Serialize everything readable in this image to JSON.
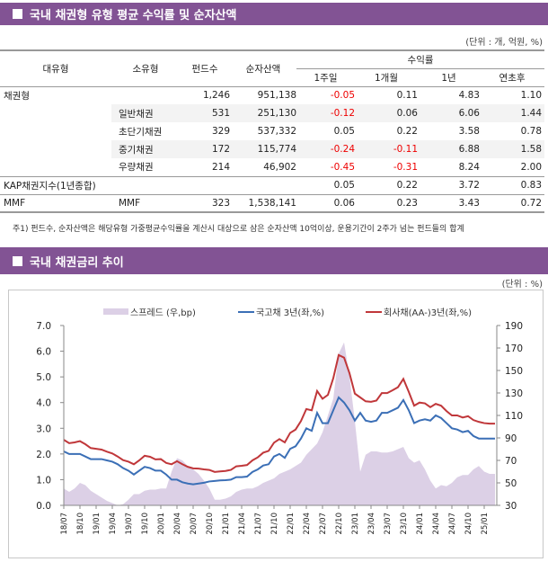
{
  "section1": {
    "title": "국내 채권형 유형 평균 수익률 및 순자산액",
    "unit": "(단위 : 개, 억원, %)"
  },
  "table": {
    "headers": {
      "major": "대유형",
      "minor": "소유형",
      "funds": "펀드수",
      "aum": "순자산액",
      "returns": "수익률",
      "w1": "1주일",
      "m1": "1개월",
      "y1": "1년",
      "ytd": "연초후"
    },
    "rows": [
      {
        "major": "채권형",
        "minor": "",
        "funds": "1,246",
        "aum": "951,138",
        "w1": "-0.05",
        "m1": "0.11",
        "y1": "4.83",
        "ytd": "1.10"
      },
      {
        "major": "",
        "minor": "일반채권",
        "funds": "531",
        "aum": "251,130",
        "w1": "-0.12",
        "m1": "0.06",
        "y1": "6.06",
        "ytd": "1.44"
      },
      {
        "major": "",
        "minor": "초단기채권",
        "funds": "329",
        "aum": "537,332",
        "w1": "0.05",
        "m1": "0.22",
        "y1": "3.58",
        "ytd": "0.78"
      },
      {
        "major": "",
        "minor": "중기채권",
        "funds": "172",
        "aum": "115,774",
        "w1": "-0.24",
        "m1": "-0.11",
        "y1": "6.88",
        "ytd": "1.58"
      },
      {
        "major": "",
        "minor": "우량채권",
        "funds": "214",
        "aum": "46,902",
        "w1": "-0.45",
        "m1": "-0.31",
        "y1": "8.24",
        "ytd": "2.00"
      },
      {
        "major": "KAP채권지수(1년종합)",
        "minor": "",
        "funds": "",
        "aum": "",
        "w1": "0.05",
        "m1": "0.22",
        "y1": "3.72",
        "ytd": "0.83"
      },
      {
        "major": "MMF",
        "minor": "MMF",
        "funds": "323",
        "aum": "1,538,141",
        "w1": "0.06",
        "m1": "0.23",
        "y1": "3.43",
        "ytd": "0.72"
      }
    ],
    "footnote": "주1) 펀드수, 순자산액은 해당유형 가중평균수익률을 계산시 대상으로 삼은 순자산액 10억이상, 운용기간이 2주가 넘는 펀드들의 합계"
  },
  "section2": {
    "title": "국내 채권금리 추이",
    "unit": "(단위 : %)"
  },
  "colors": {
    "header_bar": "#825394",
    "negative": "#e00000",
    "spread": "#dcd0e6",
    "gov": "#3b6fb6",
    "corp": "#c0373a"
  },
  "chart_data": {
    "type": "line+area",
    "legend_position": "top",
    "x_start": "18/07",
    "x_step": "month",
    "x_ticks": [
      "18/07",
      "18/10",
      "19/01",
      "19/04",
      "19/07",
      "19/10",
      "20/01",
      "20/04",
      "20/07",
      "20/10",
      "21/01",
      "21/04",
      "21/07",
      "21/10",
      "22/01",
      "22/04",
      "22/07",
      "22/10",
      "23/01",
      "23/04",
      "23/07",
      "23/10",
      "24/01",
      "24/04",
      "24/07",
      "24/10",
      "25/01"
    ],
    "y_left": {
      "min": 0,
      "max": 7,
      "ticks": [
        "0.0",
        "1.0",
        "2.0",
        "3.0",
        "4.0",
        "5.0",
        "6.0",
        "7.0"
      ]
    },
    "y_right": {
      "min": 30,
      "max": 190,
      "ticks": [
        "30",
        "50",
        "70",
        "90",
        "110",
        "130",
        "150",
        "170",
        "190"
      ]
    },
    "series": [
      {
        "name": "스프레드 (우,bp)",
        "axis": "right",
        "kind": "area",
        "values": [
          45,
          42,
          45,
          50,
          48,
          43,
          40,
          37,
          34,
          32,
          30,
          31,
          35,
          40,
          40,
          43,
          44,
          44,
          45,
          45,
          60,
          72,
          70,
          65,
          62,
          58,
          52,
          45,
          35,
          35,
          36,
          38,
          42,
          44,
          45,
          45,
          47,
          50,
          52,
          54,
          58,
          60,
          62,
          65,
          68,
          75,
          80,
          85,
          95,
          110,
          125,
          165,
          175,
          145,
          105,
          60,
          75,
          78,
          78,
          77,
          77,
          78,
          80,
          82,
          72,
          68,
          70,
          62,
          52,
          45,
          48,
          47,
          50,
          55,
          57,
          57,
          62,
          65,
          60,
          58,
          58
        ]
      },
      {
        "name": "국고채 3년(좌,%)",
        "axis": "left",
        "kind": "line",
        "values": [
          2.1,
          2.0,
          2.0,
          2.0,
          1.9,
          1.8,
          1.8,
          1.8,
          1.75,
          1.7,
          1.6,
          1.45,
          1.35,
          1.2,
          1.35,
          1.5,
          1.45,
          1.35,
          1.35,
          1.2,
          1.0,
          1.0,
          0.9,
          0.85,
          0.82,
          0.85,
          0.88,
          0.93,
          0.95,
          0.97,
          0.98,
          1.0,
          1.1,
          1.1,
          1.12,
          1.3,
          1.4,
          1.55,
          1.6,
          1.9,
          2.0,
          1.85,
          2.2,
          2.3,
          2.6,
          3.0,
          2.9,
          3.6,
          3.2,
          3.2,
          3.7,
          4.2,
          4.0,
          3.7,
          3.3,
          3.6,
          3.3,
          3.25,
          3.3,
          3.6,
          3.6,
          3.7,
          3.8,
          4.1,
          3.7,
          3.2,
          3.3,
          3.35,
          3.3,
          3.5,
          3.4,
          3.2,
          3.0,
          2.95,
          2.85,
          2.9,
          2.7,
          2.6,
          2.6,
          2.6,
          2.6
        ]
      },
      {
        "name": "회사채(AA-)3년(좌,%)",
        "axis": "left",
        "kind": "line",
        "values": [
          2.55,
          2.42,
          2.45,
          2.5,
          2.38,
          2.23,
          2.2,
          2.17,
          2.09,
          2.02,
          1.9,
          1.76,
          1.7,
          1.6,
          1.75,
          1.93,
          1.89,
          1.79,
          1.8,
          1.65,
          1.6,
          1.72,
          1.6,
          1.5,
          1.44,
          1.43,
          1.4,
          1.38,
          1.3,
          1.32,
          1.34,
          1.38,
          1.52,
          1.54,
          1.57,
          1.75,
          1.87,
          2.05,
          2.12,
          2.44,
          2.58,
          2.45,
          2.82,
          2.95,
          3.28,
          3.75,
          3.7,
          4.45,
          4.15,
          4.3,
          4.95,
          5.85,
          5.75,
          5.15,
          4.35,
          4.2,
          4.05,
          4.03,
          4.08,
          4.37,
          4.37,
          4.48,
          4.6,
          4.92,
          4.42,
          3.88,
          4.0,
          3.97,
          3.82,
          3.95,
          3.88,
          3.67,
          3.5,
          3.5,
          3.42,
          3.47,
          3.32,
          3.25,
          3.2,
          3.18,
          3.18
        ]
      }
    ]
  }
}
